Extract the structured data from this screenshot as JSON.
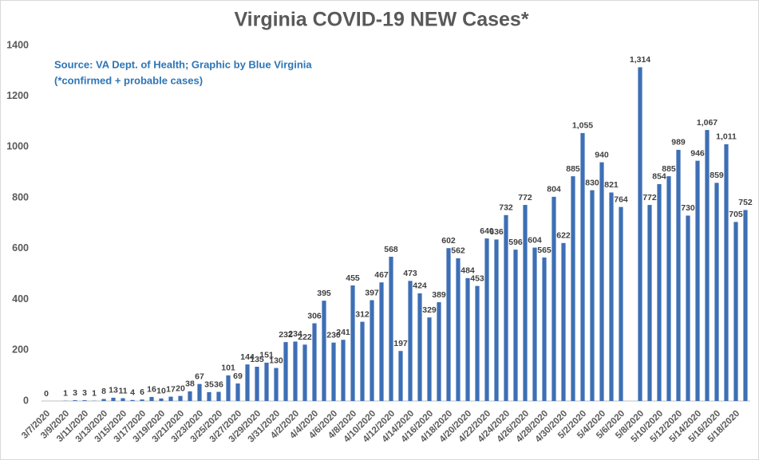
{
  "chart_data": {
    "type": "bar",
    "title": "Virginia COVID-19 NEW Cases*",
    "annotations": [
      "Source: VA Dept. of Health; Graphic by Blue Virginia",
      "(*confirmed + probable cases)"
    ],
    "color": "#3d6fb5",
    "ylim": [
      0,
      1400
    ],
    "yticks": [
      0,
      200,
      400,
      600,
      800,
      1000,
      1200,
      1400
    ],
    "grid": false,
    "categories": [
      "3/7/2020",
      null,
      "3/9/2020",
      null,
      "3/11/2020",
      null,
      "3/13/2020",
      null,
      "3/15/2020",
      null,
      "3/17/2020",
      null,
      "3/19/2020",
      null,
      "3/21/2020",
      null,
      "3/23/2020",
      null,
      "3/25/2020",
      null,
      "3/27/2020",
      null,
      "3/29/2020",
      null,
      "3/31/2020",
      null,
      "4/2/2020",
      null,
      "4/4/2020",
      null,
      "4/6/2020",
      null,
      "4/8/2020",
      null,
      "4/10/2020",
      null,
      "4/12/2020",
      null,
      "4/14/2020",
      null,
      "4/16/2020",
      null,
      "4/18/2020",
      null,
      "4/20/2020",
      null,
      "4/22/2020",
      null,
      "4/24/2020",
      null,
      "4/26/2020",
      null,
      "4/28/2020",
      null,
      "4/30/2020",
      null,
      "5/2/2020",
      null,
      "5/4/2020",
      null,
      "5/6/2020",
      null,
      "5/8/2020",
      null,
      "5/10/2020",
      null,
      "5/12/2020",
      null,
      "5/14/2020",
      null,
      "5/16/2020",
      null,
      "5/18/2020",
      null
    ],
    "values": [
      0,
      null,
      1,
      3,
      3,
      1,
      8,
      13,
      11,
      4,
      6,
      16,
      10,
      17,
      20,
      38,
      67,
      35,
      36,
      101,
      69,
      144,
      135,
      151,
      130,
      232,
      234,
      222,
      306,
      395,
      230,
      241,
      455,
      312,
      397,
      467,
      568,
      197,
      473,
      424,
      329,
      389,
      602,
      562,
      484,
      453,
      640,
      636,
      732,
      596,
      772,
      604,
      565,
      804,
      622,
      885,
      1055,
      830,
      940,
      821,
      764,
      null,
      1314,
      772,
      854,
      885,
      989,
      730,
      946,
      1067,
      859,
      1011,
      705,
      752
    ],
    "value_labels": [
      "0",
      null,
      "1",
      "3",
      "3",
      "1",
      "8",
      "13",
      "11",
      "4",
      "6",
      "16",
      "10",
      "17",
      "20",
      "38",
      "67",
      "35",
      "36",
      "101",
      "69",
      "144",
      "135",
      "151",
      "130",
      "232",
      "234",
      "222",
      "306",
      "395",
      "230",
      "241",
      "455",
      "312",
      "397",
      "467",
      "568",
      "197",
      "473",
      "424",
      "329",
      "389",
      "602",
      "562",
      "484",
      "453",
      "640",
      "636",
      "732",
      "596",
      "772",
      "604",
      "565",
      "804",
      "622",
      "885",
      "1,055",
      "830",
      "940",
      "821",
      "764",
      null,
      "1,314",
      "772",
      "854",
      "885",
      "989",
      "730",
      "946",
      "1,067",
      "859",
      "1,011",
      "705",
      "752"
    ]
  }
}
